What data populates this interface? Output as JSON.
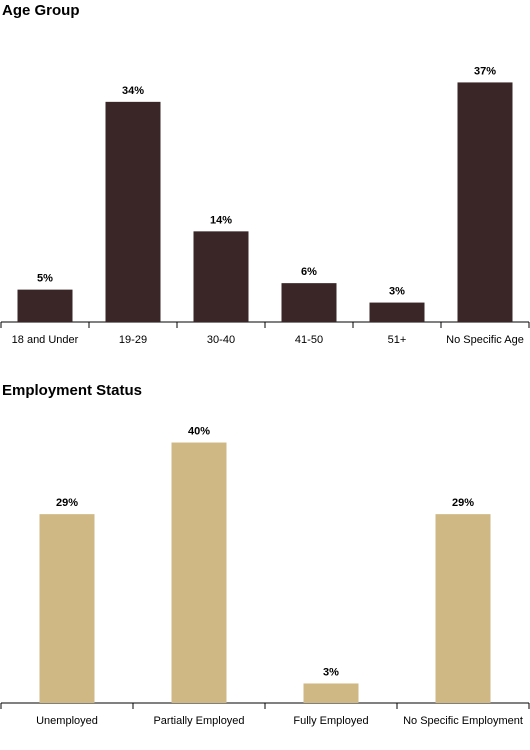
{
  "chart_data": [
    {
      "type": "bar",
      "title": "Age Group",
      "categories": [
        "18 and Under",
        "19-29",
        "30-40",
        "41-50",
        "51+",
        "No Specific Age"
      ],
      "values": [
        5,
        34,
        14,
        6,
        3,
        37
      ],
      "value_labels": [
        "5%",
        "34%",
        "14%",
        "6%",
        "3%",
        "37%"
      ],
      "unit": "%",
      "ylim": [
        0,
        40
      ],
      "grid": false,
      "color": "#3a2626"
    },
    {
      "type": "bar",
      "title": "Employment Status",
      "categories": [
        "Unemployed",
        "Partially Employed",
        "Fully Employed",
        "No Specific Employment"
      ],
      "values": [
        29,
        40,
        3,
        29
      ],
      "value_labels": [
        "29%",
        "40%",
        "3%",
        "29%"
      ],
      "unit": "%",
      "ylim": [
        0,
        43
      ],
      "grid": false,
      "color": "#cfb883"
    }
  ]
}
